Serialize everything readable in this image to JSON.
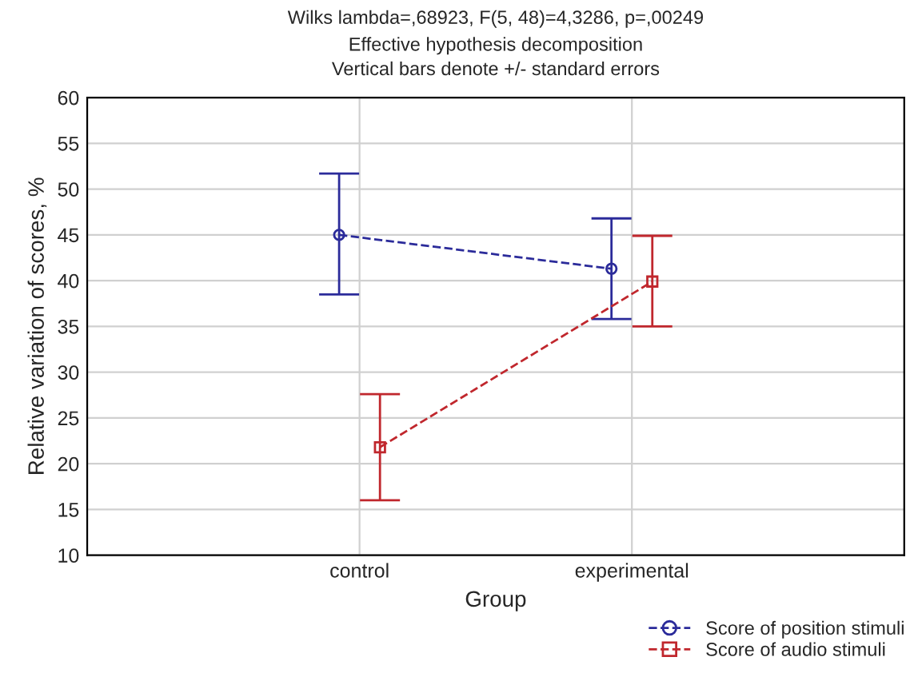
{
  "chart_data": {
    "type": "line",
    "title": "Wilks lambda=,68923, F(5, 48)=4,3286, p=,00249",
    "subtitle": "Effective hypothesis decomposition\nVertical bars denote +/- standard errors",
    "xlabel": "Group",
    "ylabel": "Relative variation of scores, %",
    "categories": [
      "control",
      "experimental"
    ],
    "series": [
      {
        "name": "Score of position stimuli",
        "color": "#2b2b9a",
        "values": [
          45.0,
          41.3
        ],
        "errors": [
          [
            38.5,
            51.7
          ],
          [
            35.8,
            46.8
          ]
        ],
        "marker": "circle"
      },
      {
        "name": "Score of audio stimuli",
        "color": "#c0272d",
        "values": [
          21.8,
          39.9
        ],
        "errors": [
          [
            16.0,
            27.6
          ],
          [
            35.0,
            44.9
          ]
        ],
        "marker": "square"
      }
    ],
    "ylim": [
      10,
      60
    ],
    "yticks": [
      10,
      15,
      20,
      25,
      30,
      35,
      40,
      45,
      50,
      55,
      60
    ],
    "grid": true,
    "legend": "bottom right",
    "line_style": "dashed"
  }
}
